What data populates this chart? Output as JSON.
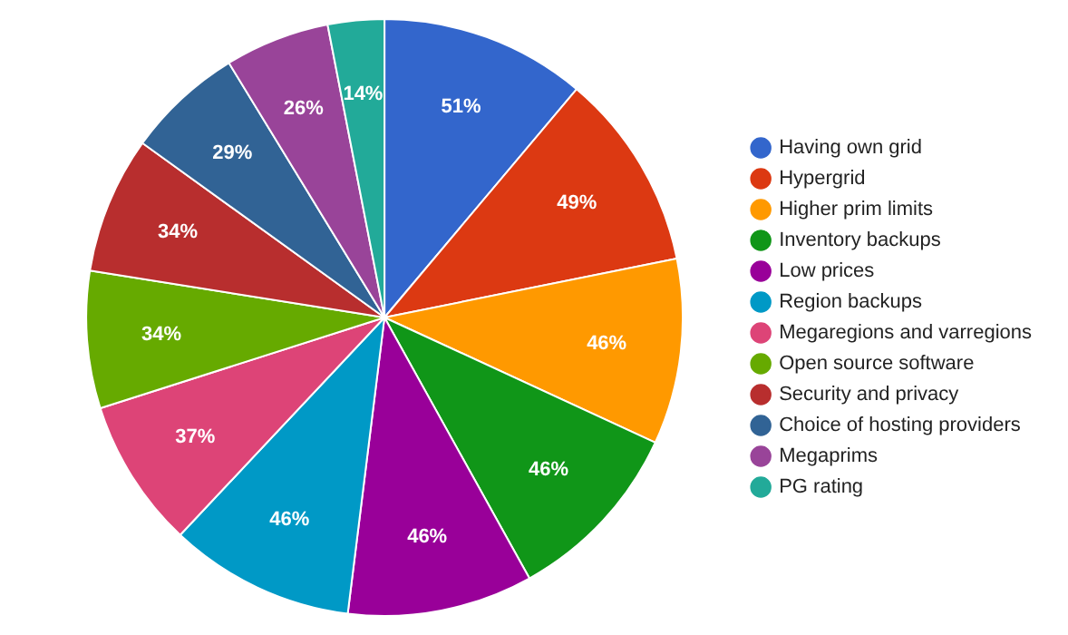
{
  "chart_data": {
    "type": "pie",
    "categories": [
      "Having own grid",
      "Hypergrid",
      "Higher prim limits",
      "Inventory backups",
      "Low prices",
      "Region backups",
      "Megaregions and varregions",
      "Open source software",
      "Security and privacy",
      "Choice of hosting providers",
      "Megaprims",
      "PG rating"
    ],
    "values": [
      51,
      49,
      46,
      46,
      46,
      46,
      37,
      34,
      34,
      29,
      26,
      14
    ],
    "value_labels": [
      "51%",
      "49%",
      "46%",
      "46%",
      "46%",
      "46%",
      "37%",
      "34%",
      "34%",
      "29%",
      "26%",
      "14%"
    ],
    "colors": [
      "#3366cc",
      "#dc3912",
      "#ff9900",
      "#109618",
      "#990099",
      "#0099c6",
      "#dd4477",
      "#66aa00",
      "#b82e2e",
      "#316395",
      "#994499",
      "#22aa99"
    ],
    "legend": "right"
  }
}
